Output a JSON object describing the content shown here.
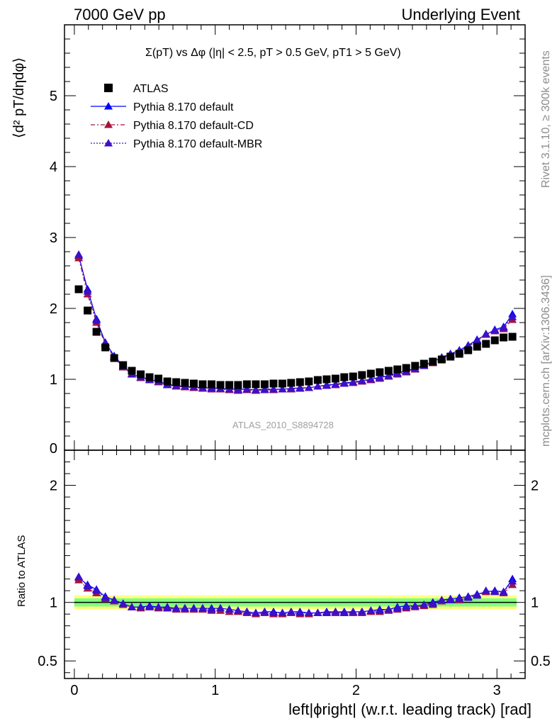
{
  "header": {
    "left": "7000 GeV pp",
    "right": "Underlying Event"
  },
  "side": {
    "rivet": "Rivet 3.1.10, ≥ 300k events",
    "mcplots": "mcplots.cern.ch [arXiv:1306.3436]"
  },
  "plot_title": "Σ(pT) vs Δφ (|η| < 2.5, pT > 0.5 GeV, pT1 > 5 GeV)",
  "watermark": "ATLAS_2010_S8894728",
  "ylabel_top": "⟨d² pT/dηdφ⟩",
  "ylabel_bottom": "Ratio to ATLAS",
  "xlabel": "left|ϕright| (w.r.t. leading track) [rad]",
  "colors": {
    "data": "#000000",
    "default": "#0000ff",
    "cd": "#a3143d",
    "mbr": "#3c0fc8",
    "band_outer": "#ffff80",
    "band_inner": "#80ff80"
  },
  "legend": [
    {
      "label": "ATLAS",
      "marker": "square",
      "color": "#000000",
      "line": "none"
    },
    {
      "label": "Pythia 8.170 default",
      "marker": "triangle",
      "color": "#0000ff",
      "line": "solid"
    },
    {
      "label": "Pythia 8.170 default-CD",
      "marker": "triangle",
      "color": "#a3143d",
      "line": "dashdot"
    },
    {
      "label": "Pythia 8.170 default-MBR",
      "marker": "triangle",
      "color": "#3c0fc8",
      "line": "dotted"
    }
  ],
  "chart_data": [
    {
      "type": "scatter",
      "xlim": [
        -0.07,
        3.2
      ],
      "ylim": [
        0,
        6
      ],
      "yticks": [
        1,
        2,
        3,
        4,
        5
      ],
      "ytick_labels": [
        "1",
        "2",
        "3",
        "4",
        "5"
      ],
      "y_bottom_label": "0",
      "legend_position": "top-left",
      "x": [
        0.031,
        0.094,
        0.157,
        0.22,
        0.283,
        0.346,
        0.408,
        0.471,
        0.534,
        0.597,
        0.66,
        0.723,
        0.785,
        0.848,
        0.911,
        0.974,
        1.037,
        1.1,
        1.162,
        1.225,
        1.288,
        1.351,
        1.414,
        1.477,
        1.539,
        1.602,
        1.665,
        1.728,
        1.791,
        1.854,
        1.916,
        1.979,
        2.042,
        2.105,
        2.168,
        2.231,
        2.293,
        2.356,
        2.419,
        2.482,
        2.545,
        2.608,
        2.67,
        2.733,
        2.796,
        2.859,
        2.922,
        2.985,
        3.047,
        3.11
      ],
      "series": [
        {
          "name": "ATLAS",
          "values": [
            2.27,
            1.97,
            1.67,
            1.45,
            1.3,
            1.2,
            1.12,
            1.07,
            1.03,
            1.01,
            0.97,
            0.96,
            0.95,
            0.94,
            0.93,
            0.93,
            0.92,
            0.92,
            0.92,
            0.93,
            0.93,
            0.93,
            0.94,
            0.94,
            0.95,
            0.96,
            0.97,
            0.99,
            1.0,
            1.01,
            1.03,
            1.04,
            1.06,
            1.08,
            1.1,
            1.12,
            1.14,
            1.16,
            1.19,
            1.22,
            1.25,
            1.28,
            1.32,
            1.36,
            1.41,
            1.46,
            1.5,
            1.55,
            1.59,
            1.6
          ]
        },
        {
          "name": "Pythia 8.170 default",
          "values": [
            2.74,
            2.27,
            1.85,
            1.52,
            1.33,
            1.19,
            1.07,
            1.03,
            1.0,
            0.97,
            0.93,
            0.91,
            0.9,
            0.89,
            0.88,
            0.88,
            0.87,
            0.86,
            0.86,
            0.86,
            0.85,
            0.86,
            0.86,
            0.86,
            0.87,
            0.88,
            0.88,
            0.9,
            0.92,
            0.93,
            0.95,
            0.96,
            0.98,
            1.0,
            1.03,
            1.05,
            1.09,
            1.12,
            1.15,
            1.2,
            1.25,
            1.31,
            1.36,
            1.41,
            1.48,
            1.56,
            1.63,
            1.7,
            1.74,
            1.92
          ]
        },
        {
          "name": "Pythia 8.170 default-CD",
          "values": [
            2.71,
            2.2,
            1.8,
            1.5,
            1.31,
            1.17,
            1.08,
            1.02,
            0.99,
            0.96,
            0.92,
            0.9,
            0.89,
            0.88,
            0.87,
            0.86,
            0.86,
            0.85,
            0.84,
            0.85,
            0.84,
            0.85,
            0.85,
            0.86,
            0.86,
            0.87,
            0.88,
            0.9,
            0.91,
            0.92,
            0.94,
            0.95,
            0.97,
            0.99,
            1.01,
            1.04,
            1.07,
            1.1,
            1.14,
            1.19,
            1.23,
            1.29,
            1.34,
            1.39,
            1.46,
            1.54,
            1.63,
            1.68,
            1.71,
            1.84
          ]
        },
        {
          "name": "Pythia 8.170 default-MBR",
          "values": [
            2.76,
            2.24,
            1.83,
            1.51,
            1.32,
            1.18,
            1.07,
            1.03,
            0.99,
            0.97,
            0.92,
            0.91,
            0.9,
            0.89,
            0.88,
            0.87,
            0.87,
            0.86,
            0.85,
            0.86,
            0.85,
            0.85,
            0.86,
            0.86,
            0.87,
            0.87,
            0.88,
            0.9,
            0.91,
            0.93,
            0.94,
            0.96,
            0.98,
            1.0,
            1.02,
            1.05,
            1.08,
            1.11,
            1.15,
            1.19,
            1.24,
            1.3,
            1.35,
            1.4,
            1.47,
            1.55,
            1.64,
            1.69,
            1.73,
            1.88
          ]
        }
      ]
    },
    {
      "type": "scatter",
      "ylim": [
        0.35,
        2.3
      ],
      "yticks": [
        0.5,
        1,
        2
      ],
      "ytick_labels": [
        "0.5",
        "1",
        "2"
      ],
      "xticks": [
        0,
        1,
        2,
        3
      ],
      "xtick_labels": [
        "0",
        "1",
        "2",
        "3"
      ],
      "bands": {
        "outer": [
          0.94,
          1.06
        ],
        "inner": [
          0.965,
          1.035
        ]
      },
      "series": [
        {
          "name": "Pythia 8.170 default",
          "values": [
            1.21,
            1.15,
            1.11,
            1.05,
            1.02,
            0.99,
            0.96,
            0.96,
            0.97,
            0.96,
            0.96,
            0.95,
            0.95,
            0.95,
            0.95,
            0.95,
            0.95,
            0.94,
            0.93,
            0.92,
            0.91,
            0.92,
            0.92,
            0.91,
            0.92,
            0.92,
            0.91,
            0.91,
            0.92,
            0.92,
            0.92,
            0.92,
            0.92,
            0.93,
            0.94,
            0.94,
            0.96,
            0.97,
            0.97,
            0.98,
            1.0,
            1.02,
            1.03,
            1.04,
            1.05,
            1.07,
            1.09,
            1.1,
            1.09,
            1.2
          ]
        },
        {
          "name": "Pythia 8.170 default-CD",
          "values": [
            1.19,
            1.12,
            1.08,
            1.03,
            1.01,
            0.98,
            0.96,
            0.95,
            0.96,
            0.95,
            0.95,
            0.94,
            0.94,
            0.94,
            0.94,
            0.93,
            0.93,
            0.92,
            0.92,
            0.91,
            0.9,
            0.91,
            0.9,
            0.9,
            0.91,
            0.9,
            0.9,
            0.91,
            0.91,
            0.91,
            0.91,
            0.91,
            0.91,
            0.92,
            0.92,
            0.93,
            0.94,
            0.95,
            0.96,
            0.97,
            0.98,
            1.01,
            1.02,
            1.02,
            1.04,
            1.06,
            1.09,
            1.09,
            1.08,
            1.15
          ]
        },
        {
          "name": "Pythia 8.170 default-MBR",
          "values": [
            1.22,
            1.14,
            1.1,
            1.04,
            1.02,
            0.99,
            0.96,
            0.96,
            0.96,
            0.96,
            0.95,
            0.95,
            0.95,
            0.95,
            0.95,
            0.94,
            0.95,
            0.94,
            0.93,
            0.92,
            0.91,
            0.92,
            0.91,
            0.91,
            0.92,
            0.91,
            0.91,
            0.91,
            0.91,
            0.92,
            0.91,
            0.92,
            0.92,
            0.93,
            0.93,
            0.94,
            0.95,
            0.96,
            0.97,
            0.98,
            0.99,
            1.02,
            1.02,
            1.03,
            1.04,
            1.06,
            1.1,
            1.09,
            1.09,
            1.18
          ]
        }
      ]
    }
  ]
}
